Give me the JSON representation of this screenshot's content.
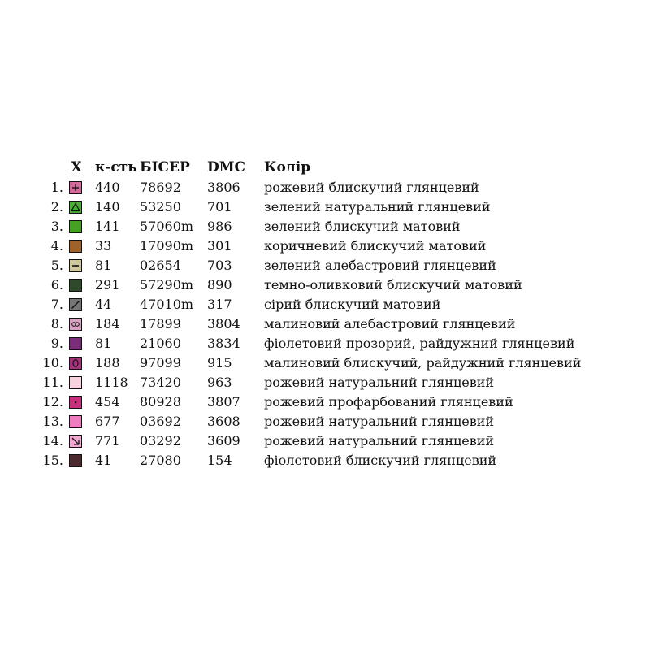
{
  "headers": {
    "symbol": "X",
    "quantity": "к-сть",
    "bead": "БІСЕР",
    "dmc": "DMC",
    "color": "Колір"
  },
  "rows": [
    {
      "num": "1.",
      "qty": "440",
      "bead": "78692",
      "dmc": "3806",
      "color": "рожевий блискучий глянцевий",
      "swatch_color": "#d46a9a",
      "icon": "plus-icon"
    },
    {
      "num": "2.",
      "qty": "140",
      "bead": "53250",
      "dmc": "701",
      "color": "зелений натуральний глянцевий",
      "swatch_color": "#4caf35",
      "icon": "triangle-icon"
    },
    {
      "num": "3.",
      "qty": "141",
      "bead": "57060m",
      "dmc": "986",
      "color": "зелений блискучий матовий",
      "swatch_color": "#45a024",
      "icon": "none"
    },
    {
      "num": "4.",
      "qty": "33",
      "bead": "17090m",
      "dmc": "301",
      "color": "коричневий блискучий матовий",
      "swatch_color": "#a0622b",
      "icon": "none"
    },
    {
      "num": "5.",
      "qty": "81",
      "bead": "02654",
      "dmc": "703",
      "color": "зелений алебастровий глянцевий",
      "swatch_color": "#cfc9a0",
      "icon": "minus-icon"
    },
    {
      "num": "6.",
      "qty": "291",
      "bead": "57290m",
      "dmc": "890",
      "color": "темно-оливковий блискучий матовий",
      "swatch_color": "#2e4a2a",
      "icon": "none"
    },
    {
      "num": "7.",
      "qty": "44",
      "bead": "47010m",
      "dmc": "317",
      "color": "сірий блискучий матовий",
      "swatch_color": "#767676",
      "icon": "slash-icon"
    },
    {
      "num": "8.",
      "qty": "184",
      "bead": "17899",
      "dmc": "3804",
      "color": "малиновий алебастровий глянцевий",
      "swatch_color": "#d9a3c4",
      "icon": "double-circle-icon"
    },
    {
      "num": "9.",
      "qty": "81",
      "bead": "21060",
      "dmc": "3834",
      "color": "фіолетовий прозорий, райдужний глянцевий",
      "swatch_color": "#7a2e7a",
      "icon": "none"
    },
    {
      "num": "10.",
      "qty": "188",
      "bead": "97099",
      "dmc": "915",
      "color": "малиновий блискучий, райдужний глянцевий",
      "swatch_color": "#a8327a",
      "icon": "oval-icon"
    },
    {
      "num": "11.",
      "qty": "1118",
      "bead": "73420",
      "dmc": "963",
      "color": "рожевий натуральний глянцевий",
      "swatch_color": "#f6d3dd",
      "icon": "none"
    },
    {
      "num": "12.",
      "qty": "454",
      "bead": "80928",
      "dmc": "3807",
      "color": "рожевий профарбований глянцевий",
      "swatch_color": "#c8307e",
      "icon": "dot-icon"
    },
    {
      "num": "13.",
      "qty": "677",
      "bead": "03692",
      "dmc": "3608",
      "color": "рожевий натуральний глянцевий",
      "swatch_color": "#f07cc0",
      "icon": "none"
    },
    {
      "num": "14.",
      "qty": "771",
      "bead": "03292",
      "dmc": "3609",
      "color": "рожевий натуральний глянцевий",
      "swatch_color": "#f3a8d2",
      "icon": "corner-arrow-icon"
    },
    {
      "num": "15.",
      "qty": "41",
      "bead": "27080",
      "dmc": "154",
      "color": "фіолетовий блискучий глянцевий",
      "swatch_color": "#4a2a2e",
      "icon": "none"
    }
  ]
}
